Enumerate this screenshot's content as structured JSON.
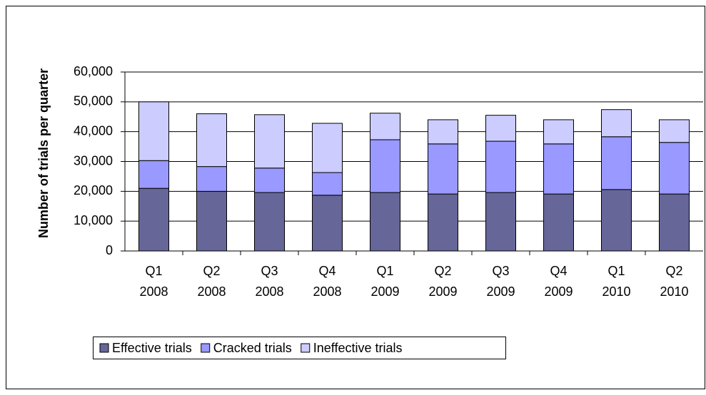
{
  "chart_data": {
    "type": "stacked_bar",
    "y_label": "Number of trials per quarter",
    "categories": [
      "Q1 2008",
      "Q2 2008",
      "Q3 2008",
      "Q4 2008",
      "Q1 2009",
      "Q2 2009",
      "Q3 2009",
      "Q4 2009",
      "Q1 2010",
      "Q2 2010"
    ],
    "series": [
      {
        "name": "Effective trials",
        "color": "#666699",
        "values": [
          21000,
          20000,
          19600,
          18700,
          19600,
          19100,
          19600,
          19100,
          20600,
          19100
        ]
      },
      {
        "name": "Cracked trials",
        "color": "#9999ff",
        "values": [
          9300,
          8300,
          8200,
          7600,
          17700,
          16800,
          17200,
          16800,
          17700,
          17300
        ]
      },
      {
        "name": "Ineffective trials",
        "color": "#ccccff",
        "values": [
          19700,
          17700,
          17900,
          16500,
          8900,
          8100,
          8700,
          8100,
          9100,
          7600
        ]
      }
    ],
    "ylim": [
      0,
      60000
    ],
    "yticks": [
      0,
      {
        "value": 10000,
        "label": "10,000"
      },
      {
        "value": 20000,
        "label": "20,000"
      },
      {
        "value": 30000,
        "label": "30,000"
      },
      {
        "value": 40000,
        "label": "40,000"
      },
      {
        "value": 50000,
        "label": "50,000"
      },
      {
        "value": 60000,
        "label": "60,000"
      }
    ],
    "grid": true,
    "legend": "bottom"
  }
}
